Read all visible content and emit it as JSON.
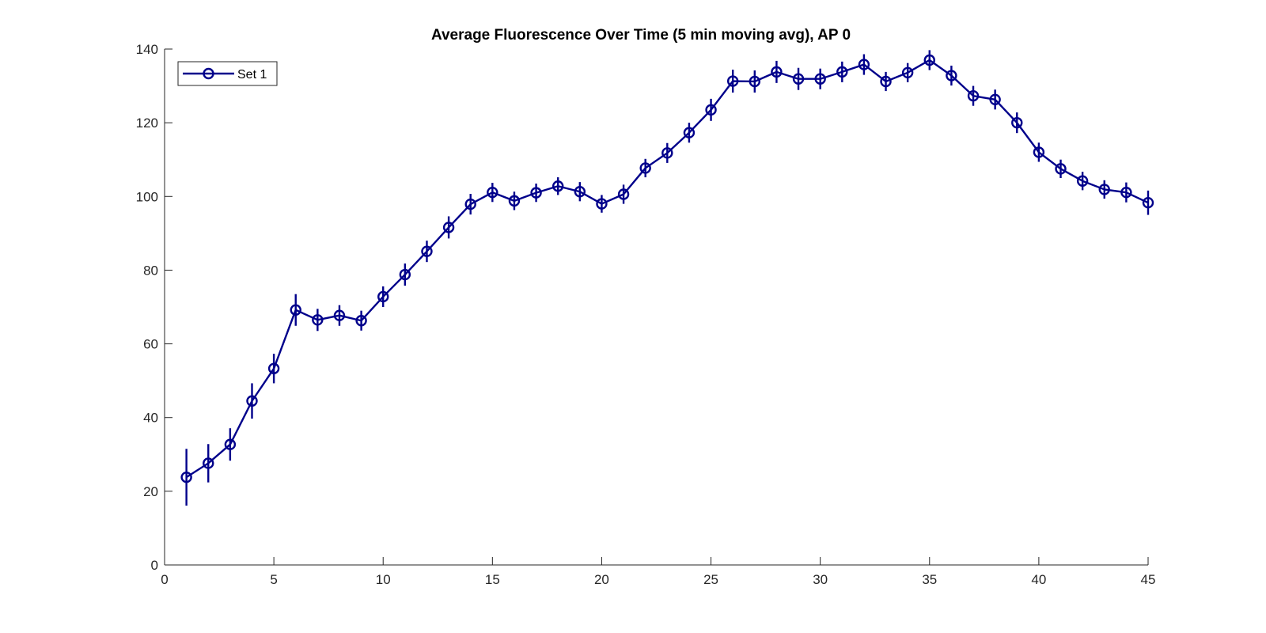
{
  "chart_data": {
    "type": "line",
    "title": "Average Fluorescence Over Time (5 min moving avg), AP 0",
    "xlabel": "",
    "ylabel": "",
    "xlim": [
      0,
      45
    ],
    "ylim": [
      0,
      140
    ],
    "xticks": [
      0,
      5,
      10,
      15,
      20,
      25,
      30,
      35,
      40,
      45
    ],
    "yticks": [
      0,
      20,
      40,
      60,
      80,
      100,
      120,
      140
    ],
    "grid": false,
    "legend_position": "top-left",
    "series": [
      {
        "name": "Set 1",
        "color": "#00008B",
        "marker": "circle",
        "error_bars": true,
        "x": [
          1,
          2,
          3,
          4,
          5,
          6,
          7,
          8,
          9,
          10,
          11,
          12,
          13,
          14,
          15,
          16,
          17,
          18,
          19,
          20,
          21,
          22,
          23,
          24,
          25,
          26,
          27,
          28,
          29,
          30,
          31,
          32,
          33,
          34,
          35,
          36,
          37,
          38,
          39,
          40,
          41,
          42,
          43,
          44,
          45
        ],
        "y": [
          23.8,
          27.6,
          32.7,
          44.5,
          53.3,
          69.2,
          66.5,
          67.7,
          66.3,
          72.8,
          78.8,
          85.1,
          91.6,
          97.9,
          101.1,
          98.8,
          101.0,
          102.8,
          101.3,
          98.0,
          100.6,
          107.7,
          111.8,
          117.3,
          123.5,
          131.3,
          131.2,
          133.8,
          131.9,
          131.9,
          133.8,
          135.8,
          131.2,
          133.6,
          137.0,
          132.8,
          127.3,
          126.3,
          120.0,
          112.0,
          107.5,
          104.2,
          101.9,
          101.1,
          98.3
        ],
        "err": [
          7.7,
          5.2,
          4.4,
          4.8,
          4.0,
          4.3,
          3.0,
          2.8,
          2.7,
          2.8,
          3.0,
          2.9,
          3.0,
          2.8,
          2.6,
          2.5,
          2.5,
          2.4,
          2.6,
          2.4,
          2.6,
          2.5,
          2.7,
          2.7,
          3.0,
          3.1,
          3.0,
          3.0,
          3.0,
          2.8,
          2.8,
          2.8,
          2.6,
          2.6,
          2.7,
          2.7,
          2.7,
          2.7,
          2.8,
          2.6,
          2.5,
          2.5,
          2.5,
          2.7,
          3.3
        ]
      }
    ]
  }
}
